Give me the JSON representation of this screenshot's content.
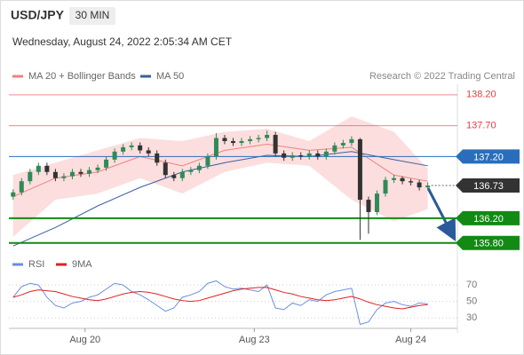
{
  "header": {
    "symbol": "USD/JPY",
    "interval": "30 MIN",
    "datetime": "Wednesday, August 24, 2022 2:05:34 AM CET",
    "credit": "Research © 2022 Trading Central"
  },
  "chart_data": [
    {
      "type": "candlestick",
      "up_color": "#2e8b57",
      "down_color": "#333333",
      "open": [
        136.55,
        136.62,
        136.8,
        136.95,
        137.05,
        136.95,
        136.85,
        136.88,
        136.95,
        136.92,
        136.98,
        137.02,
        137.15,
        137.28,
        137.35,
        137.38,
        137.3,
        137.25,
        137.1,
        136.9,
        136.85,
        136.95,
        136.98,
        137.05,
        137.2,
        137.5,
        137.45,
        137.42,
        137.45,
        137.48,
        137.5,
        137.55,
        137.25,
        137.18,
        137.22,
        137.2,
        137.25,
        137.2,
        137.28,
        137.38,
        137.42,
        137.48,
        136.5,
        136.3,
        136.6,
        136.82,
        136.85,
        136.8,
        136.78,
        136.7
      ],
      "high": [
        136.67,
        136.85,
        137.0,
        137.1,
        137.1,
        137.0,
        136.93,
        137.0,
        137.0,
        137.03,
        137.07,
        137.2,
        137.33,
        137.4,
        137.43,
        137.43,
        137.35,
        137.3,
        137.15,
        136.95,
        137.0,
        137.03,
        137.1,
        137.25,
        137.58,
        137.55,
        137.5,
        137.5,
        137.53,
        137.55,
        137.62,
        137.6,
        137.3,
        137.27,
        137.27,
        137.3,
        137.3,
        137.33,
        137.43,
        137.47,
        137.53,
        137.5,
        136.55,
        136.65,
        136.87,
        136.9,
        136.88,
        136.84,
        136.82,
        136.78
      ],
      "low": [
        136.5,
        136.57,
        136.75,
        136.9,
        136.9,
        136.8,
        136.8,
        136.83,
        136.87,
        136.87,
        136.93,
        136.97,
        137.1,
        137.23,
        137.3,
        137.25,
        137.2,
        137.05,
        136.85,
        136.8,
        136.8,
        136.9,
        136.93,
        137.0,
        137.15,
        137.4,
        137.37,
        137.37,
        137.4,
        137.43,
        137.45,
        137.2,
        137.13,
        137.13,
        137.15,
        137.15,
        137.15,
        137.15,
        137.23,
        137.33,
        137.37,
        135.85,
        135.95,
        136.25,
        136.55,
        136.77,
        136.75,
        136.73,
        136.65,
        136.65
      ],
      "close": [
        136.62,
        136.8,
        136.95,
        137.05,
        136.95,
        136.85,
        136.88,
        136.95,
        136.92,
        136.98,
        137.02,
        137.15,
        137.28,
        137.35,
        137.38,
        137.3,
        137.25,
        137.1,
        136.9,
        136.85,
        136.95,
        136.98,
        137.05,
        137.2,
        137.5,
        137.45,
        137.42,
        137.45,
        137.48,
        137.5,
        137.55,
        137.25,
        137.18,
        137.22,
        137.2,
        137.25,
        137.2,
        137.28,
        137.38,
        137.42,
        137.48,
        136.5,
        136.3,
        136.6,
        136.82,
        136.85,
        136.8,
        136.78,
        136.7,
        136.73
      ],
      "series": [
        {
          "name": "MA 20 + Bollinger Bands",
          "color": "#f08080",
          "band_color": "#fbd0d0",
          "x": [
            0,
            5,
            10,
            15,
            20,
            25,
            30,
            35,
            40,
            45,
            49
          ],
          "values": [
            136.55,
            136.85,
            136.95,
            137.2,
            137.05,
            137.3,
            137.4,
            137.3,
            137.35,
            136.9,
            136.8
          ],
          "band_upper": [
            136.9,
            137.1,
            137.3,
            137.5,
            137.45,
            137.6,
            137.65,
            137.45,
            137.85,
            137.6,
            137.0
          ],
          "band_lower": [
            135.9,
            136.5,
            136.6,
            136.85,
            136.6,
            136.95,
            137.1,
            137.05,
            136.5,
            136.15,
            136.35
          ]
        },
        {
          "name": "MA 50",
          "color": "#3a5fa0",
          "x": [
            0,
            5,
            10,
            15,
            20,
            25,
            30,
            35,
            40,
            45,
            49
          ],
          "values": [
            135.75,
            136.05,
            136.4,
            136.7,
            136.95,
            137.1,
            137.22,
            137.2,
            137.28,
            137.15,
            137.05
          ]
        }
      ],
      "levels": [
        {
          "value": 138.2,
          "label": "138.20",
          "color": "#e04040",
          "style": "line"
        },
        {
          "value": 137.7,
          "label": "137.70",
          "color": "#e04040",
          "style": "line"
        },
        {
          "value": 137.2,
          "label": "137.20",
          "color": "#2a6ebb",
          "style": "box"
        },
        {
          "value": 136.73,
          "label": "136.73",
          "color": "#333333",
          "style": "current"
        },
        {
          "value": 136.2,
          "label": "136.20",
          "color": "#138a13",
          "style": "box"
        },
        {
          "value": 135.8,
          "label": "135.80",
          "color": "#138a13",
          "style": "box"
        }
      ],
      "xlim": [
        -0.5,
        52.5
      ],
      "ylim": [
        135.71,
        138.37
      ]
    },
    {
      "type": "line",
      "series": [
        {
          "name": "RSI",
          "color": "#6a8ee0",
          "values": [
            55,
            68,
            72,
            70,
            55,
            45,
            42,
            48,
            50,
            55,
            58,
            65,
            72,
            70,
            62,
            58,
            52,
            45,
            38,
            42,
            55,
            58,
            62,
            72,
            75,
            68,
            65,
            66,
            64,
            62,
            70,
            42,
            40,
            48,
            45,
            52,
            50,
            58,
            62,
            64,
            66,
            22,
            25,
            40,
            48,
            50,
            46,
            44,
            48,
            47
          ]
        },
        {
          "name": "9MA",
          "color": "#e02020",
          "values": [
            55,
            58,
            62,
            64,
            63,
            62,
            59,
            56,
            54,
            52,
            51,
            53,
            56,
            59,
            61,
            62,
            61,
            59,
            56,
            53,
            51,
            50,
            51,
            54,
            57,
            60,
            63,
            65,
            66,
            67,
            67,
            64,
            61,
            59,
            56,
            54,
            52,
            51,
            52,
            54,
            56,
            53,
            49,
            46,
            44,
            42,
            41,
            43,
            45,
            46
          ]
        }
      ],
      "xlim": [
        -0.5,
        52.5
      ],
      "ylim": [
        15,
        82
      ],
      "yticks": [
        70,
        50,
        30
      ],
      "xticks": [
        {
          "value": 8.5,
          "label": "Aug 20"
        },
        {
          "value": 28.5,
          "label": "Aug 23"
        },
        {
          "value": 47,
          "label": "Aug 24"
        }
      ]
    }
  ]
}
